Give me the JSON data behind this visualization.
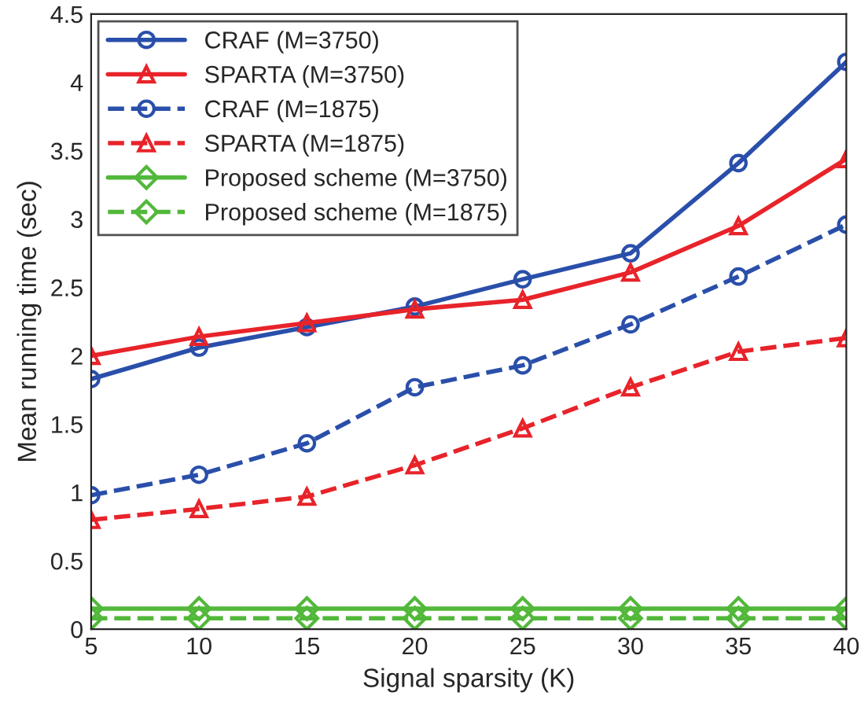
{
  "chart_data": {
    "type": "line",
    "xlabel": "Signal sparsity (K)",
    "ylabel": "Mean running time (sec)",
    "x": [
      5,
      10,
      15,
      20,
      25,
      30,
      35,
      40
    ],
    "series": [
      {
        "name": "CRAF (M=3750)",
        "color": "#2a4faa",
        "marker": "circle",
        "line_style": "solid",
        "values": [
          1.83,
          2.06,
          2.21,
          2.36,
          2.56,
          2.75,
          3.41,
          4.15
        ]
      },
      {
        "name": "SPARTA (M=3750)",
        "color": "#e8232a",
        "marker": "triangle",
        "line_style": "solid",
        "values": [
          2.0,
          2.14,
          2.24,
          2.34,
          2.41,
          2.61,
          2.95,
          3.44
        ]
      },
      {
        "name": "CRAF (M=1875)",
        "color": "#2a4faa",
        "marker": "circle",
        "line_style": "dashed",
        "values": [
          0.98,
          1.13,
          1.36,
          1.77,
          1.93,
          2.23,
          2.58,
          2.96
        ]
      },
      {
        "name": "SPARTA (M=1875)",
        "color": "#e8232a",
        "marker": "triangle",
        "line_style": "dashed",
        "values": [
          0.8,
          0.88,
          0.97,
          1.2,
          1.47,
          1.77,
          2.03,
          2.13
        ]
      },
      {
        "name": "Proposed scheme (M=3750)",
        "color": "#52b83a",
        "marker": "diamond",
        "line_style": "solid",
        "values": [
          0.15,
          0.15,
          0.15,
          0.15,
          0.15,
          0.15,
          0.15,
          0.15
        ]
      },
      {
        "name": "Proposed scheme (M=1875)",
        "color": "#52b83a",
        "marker": "diamond",
        "line_style": "dashed",
        "values": [
          0.08,
          0.08,
          0.08,
          0.08,
          0.08,
          0.08,
          0.08,
          0.08
        ]
      }
    ],
    "xlim": [
      5,
      40
    ],
    "xticks": [
      5,
      10,
      15,
      20,
      25,
      30,
      35,
      40
    ],
    "ylim": [
      0,
      4.5
    ],
    "yticks": [
      0,
      0.5,
      1,
      1.5,
      2,
      2.5,
      3,
      3.5,
      4,
      4.5
    ],
    "grid": false,
    "legend": "top left"
  }
}
